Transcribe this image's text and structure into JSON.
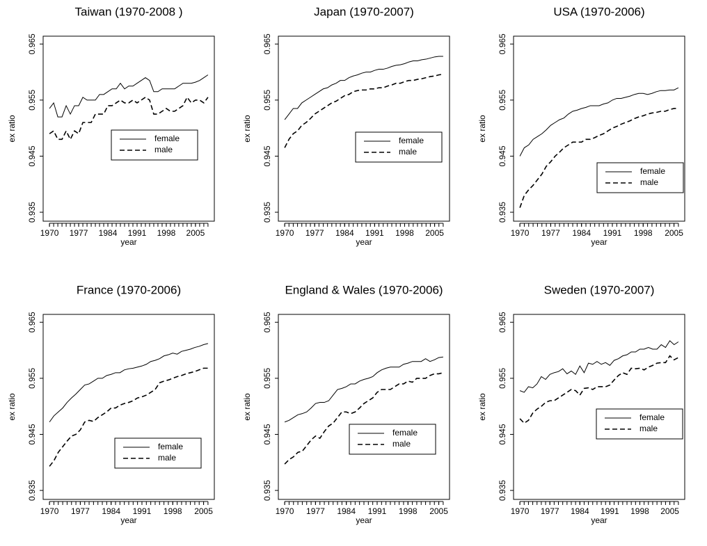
{
  "chart_data": [
    {
      "type": "line",
      "title": "Taiwan (1970-2008 )",
      "x_label": "year",
      "y_label": "ex ratio",
      "x": [
        1970,
        1971,
        1972,
        1973,
        1974,
        1975,
        1976,
        1977,
        1978,
        1979,
        1980,
        1981,
        1982,
        1983,
        1984,
        1985,
        1986,
        1987,
        1988,
        1989,
        1990,
        1991,
        1992,
        1993,
        1994,
        1995,
        1996,
        1997,
        1998,
        1999,
        2000,
        2001,
        2002,
        2003,
        2004,
        2005,
        2006,
        2007,
        2008
      ],
      "series": [
        {
          "name": "female",
          "color": "#000000",
          "linestyle": "solid",
          "values": [
            0.9535,
            0.9545,
            0.952,
            0.952,
            0.954,
            0.9525,
            0.954,
            0.954,
            0.9555,
            0.955,
            0.955,
            0.955,
            0.956,
            0.956,
            0.9565,
            0.957,
            0.957,
            0.958,
            0.957,
            0.9575,
            0.9575,
            0.958,
            0.9585,
            0.959,
            0.9585,
            0.9565,
            0.9565,
            0.957,
            0.957,
            0.957,
            0.957,
            0.9575,
            0.958,
            0.958,
            0.958,
            0.9582,
            0.9585,
            0.959,
            0.9595
          ]
        },
        {
          "name": "male",
          "color": "#000000",
          "linestyle": "dashed",
          "values": [
            0.949,
            0.9495,
            0.948,
            0.948,
            0.9495,
            0.948,
            0.9495,
            0.949,
            0.951,
            0.951,
            0.951,
            0.9525,
            0.9525,
            0.9525,
            0.954,
            0.954,
            0.9545,
            0.955,
            0.9545,
            0.9545,
            0.955,
            0.9545,
            0.955,
            0.9555,
            0.955,
            0.9525,
            0.9525,
            0.953,
            0.9535,
            0.953,
            0.953,
            0.9535,
            0.954,
            0.9555,
            0.9545,
            0.955,
            0.955,
            0.9545,
            0.9555
          ]
        }
      ],
      "xlim": [
        1968.48,
        2009.52
      ],
      "ylim": [
        0.9334,
        0.9664
      ],
      "xticks": [
        1970,
        1977,
        1984,
        1991,
        1998,
        2005
      ],
      "yticks": [
        0.935,
        0.945,
        0.955,
        0.965
      ]
    },
    {
      "type": "line",
      "title": "Japan (1970-2007)",
      "x_label": "year",
      "y_label": "ex ratio",
      "x": [
        1970,
        1971,
        1972,
        1973,
        1974,
        1975,
        1976,
        1977,
        1978,
        1979,
        1980,
        1981,
        1982,
        1983,
        1984,
        1985,
        1986,
        1987,
        1988,
        1989,
        1990,
        1991,
        1992,
        1993,
        1994,
        1995,
        1996,
        1997,
        1998,
        1999,
        2000,
        2001,
        2002,
        2003,
        2004,
        2005,
        2006,
        2007
      ],
      "series": [
        {
          "name": "female",
          "color": "#000000",
          "linestyle": "solid",
          "values": [
            0.9515,
            0.9525,
            0.9535,
            0.9535,
            0.9545,
            0.955,
            0.9555,
            0.956,
            0.9565,
            0.957,
            0.9572,
            0.9577,
            0.958,
            0.9585,
            0.9585,
            0.959,
            0.9593,
            0.9595,
            0.9598,
            0.96,
            0.96,
            0.9603,
            0.9605,
            0.9605,
            0.9607,
            0.961,
            0.9612,
            0.9613,
            0.9615,
            0.9618,
            0.962,
            0.962,
            0.9622,
            0.9623,
            0.9625,
            0.9627,
            0.9628,
            0.9628
          ]
        },
        {
          "name": "male",
          "color": "#000000",
          "linestyle": "dashed",
          "values": [
            0.9465,
            0.948,
            0.949,
            0.9495,
            0.9505,
            0.951,
            0.9517,
            0.9525,
            0.953,
            0.9535,
            0.954,
            0.9545,
            0.9548,
            0.9553,
            0.9558,
            0.956,
            0.9565,
            0.9567,
            0.9568,
            0.9568,
            0.957,
            0.957,
            0.9572,
            0.9572,
            0.9575,
            0.9577,
            0.958,
            0.958,
            0.9583,
            0.9585,
            0.9585,
            0.9587,
            0.9588,
            0.959,
            0.9592,
            0.9593,
            0.9595,
            0.9596
          ]
        }
      ],
      "xlim": [
        1968.52,
        2008.48
      ],
      "ylim": [
        0.9334,
        0.9664
      ],
      "xticks": [
        1970,
        1977,
        1984,
        1991,
        1998,
        2005
      ],
      "yticks": [
        0.935,
        0.945,
        0.955,
        0.965
      ]
    },
    {
      "type": "line",
      "title": "USA (1970-2006)",
      "x_label": "year",
      "y_label": "ex ratio",
      "x": [
        1970,
        1971,
        1972,
        1973,
        1974,
        1975,
        1976,
        1977,
        1978,
        1979,
        1980,
        1981,
        1982,
        1983,
        1984,
        1985,
        1986,
        1987,
        1988,
        1989,
        1990,
        1991,
        1992,
        1993,
        1994,
        1995,
        1996,
        1997,
        1998,
        1999,
        2000,
        2001,
        2002,
        2003,
        2004,
        2005,
        2006
      ],
      "series": [
        {
          "name": "female",
          "color": "#000000",
          "linestyle": "solid",
          "values": [
            0.945,
            0.9465,
            0.947,
            0.948,
            0.9485,
            0.949,
            0.9497,
            0.9505,
            0.951,
            0.9515,
            0.9518,
            0.9525,
            0.953,
            0.9532,
            0.9535,
            0.9537,
            0.954,
            0.954,
            0.954,
            0.9543,
            0.9545,
            0.955,
            0.9553,
            0.9553,
            0.9555,
            0.9557,
            0.956,
            0.9562,
            0.9562,
            0.956,
            0.9562,
            0.9565,
            0.9567,
            0.9567,
            0.9568,
            0.9568,
            0.9572
          ]
        },
        {
          "name": "male",
          "color": "#000000",
          "linestyle": "dashed",
          "values": [
            0.9358,
            0.938,
            0.939,
            0.9398,
            0.9408,
            0.9418,
            0.9432,
            0.944,
            0.945,
            0.9457,
            0.9465,
            0.947,
            0.9475,
            0.9475,
            0.9475,
            0.948,
            0.948,
            0.9483,
            0.9487,
            0.949,
            0.9495,
            0.95,
            0.9503,
            0.9507,
            0.951,
            0.9513,
            0.9517,
            0.952,
            0.9522,
            0.9525,
            0.9527,
            0.9528,
            0.953,
            0.953,
            0.9533,
            0.9535,
            0.9535
          ]
        }
      ],
      "xlim": [
        1968.56,
        2007.44
      ],
      "ylim": [
        0.9334,
        0.9664
      ],
      "xticks": [
        1970,
        1977,
        1984,
        1991,
        1998,
        2005
      ],
      "yticks": [
        0.935,
        0.945,
        0.955,
        0.965
      ]
    },
    {
      "type": "line",
      "title": "France (1970-2006)",
      "x_label": "year",
      "y_label": "ex ratio",
      "x": [
        1970,
        1971,
        1972,
        1973,
        1974,
        1975,
        1976,
        1977,
        1978,
        1979,
        1980,
        1981,
        1982,
        1983,
        1984,
        1985,
        1986,
        1987,
        1988,
        1989,
        1990,
        1991,
        1992,
        1993,
        1994,
        1995,
        1996,
        1997,
        1998,
        1999,
        2000,
        2001,
        2002,
        2003,
        2004,
        2005,
        2006
      ],
      "series": [
        {
          "name": "female",
          "color": "#000000",
          "linestyle": "solid",
          "values": [
            0.9472,
            0.9483,
            0.949,
            0.9497,
            0.9507,
            0.9515,
            0.9522,
            0.953,
            0.9538,
            0.954,
            0.9545,
            0.955,
            0.955,
            0.9555,
            0.9557,
            0.956,
            0.956,
            0.9565,
            0.9567,
            0.9568,
            0.957,
            0.9572,
            0.9575,
            0.958,
            0.9582,
            0.9585,
            0.959,
            0.9592,
            0.9595,
            0.9593,
            0.9598,
            0.96,
            0.9602,
            0.9605,
            0.9607,
            0.961,
            0.9612
          ]
        },
        {
          "name": "male",
          "color": "#000000",
          "linestyle": "dashed",
          "values": [
            0.9393,
            0.9403,
            0.9418,
            0.9428,
            0.9438,
            0.9447,
            0.945,
            0.9458,
            0.9472,
            0.9475,
            0.9473,
            0.948,
            0.9485,
            0.949,
            0.9497,
            0.9497,
            0.9502,
            0.9505,
            0.9507,
            0.951,
            0.9515,
            0.9517,
            0.952,
            0.9525,
            0.953,
            0.9542,
            0.9545,
            0.9547,
            0.955,
            0.9553,
            0.9555,
            0.9558,
            0.956,
            0.9562,
            0.9565,
            0.9568,
            0.9568
          ]
        }
      ],
      "xlim": [
        1968.56,
        2007.44
      ],
      "ylim": [
        0.9334,
        0.9664
      ],
      "xticks": [
        1970,
        1977,
        1984,
        1991,
        1998,
        2005
      ],
      "yticks": [
        0.935,
        0.945,
        0.955,
        0.965
      ]
    },
    {
      "type": "line",
      "title": "England & Wales (1970-2006)",
      "x_label": "year",
      "y_label": "ex ratio",
      "x": [
        1970,
        1971,
        1972,
        1973,
        1974,
        1975,
        1976,
        1977,
        1978,
        1979,
        1980,
        1981,
        1982,
        1983,
        1984,
        1985,
        1986,
        1987,
        1988,
        1989,
        1990,
        1991,
        1992,
        1993,
        1994,
        1995,
        1996,
        1997,
        1998,
        1999,
        2000,
        2001,
        2002,
        2003,
        2004,
        2005,
        2006
      ],
      "series": [
        {
          "name": "female",
          "color": "#000000",
          "linestyle": "solid",
          "values": [
            0.9472,
            0.9475,
            0.948,
            0.9485,
            0.9487,
            0.949,
            0.9497,
            0.9505,
            0.9507,
            0.9507,
            0.951,
            0.952,
            0.953,
            0.9532,
            0.9535,
            0.954,
            0.954,
            0.9545,
            0.9548,
            0.955,
            0.9553,
            0.956,
            0.9565,
            0.9568,
            0.957,
            0.957,
            0.957,
            0.9575,
            0.9577,
            0.958,
            0.958,
            0.958,
            0.9585,
            0.958,
            0.9583,
            0.9587,
            0.9588
          ]
        },
        {
          "name": "male",
          "color": "#000000",
          "linestyle": "dashed",
          "values": [
            0.9397,
            0.9405,
            0.941,
            0.9418,
            0.942,
            0.943,
            0.944,
            0.9447,
            0.9443,
            0.9455,
            0.9465,
            0.947,
            0.948,
            0.949,
            0.949,
            0.9487,
            0.949,
            0.9497,
            0.9505,
            0.951,
            0.9515,
            0.9525,
            0.953,
            0.953,
            0.953,
            0.9535,
            0.954,
            0.954,
            0.9545,
            0.9543,
            0.955,
            0.955,
            0.955,
            0.9555,
            0.9558,
            0.9558,
            0.956
          ]
        }
      ],
      "xlim": [
        1968.56,
        2007.44
      ],
      "ylim": [
        0.9334,
        0.9664
      ],
      "xticks": [
        1970,
        1977,
        1984,
        1991,
        1998,
        2005
      ],
      "yticks": [
        0.935,
        0.945,
        0.955,
        0.965
      ]
    },
    {
      "type": "line",
      "title": "Sweden (1970-2007)",
      "x_label": "year",
      "y_label": "ex ratio",
      "x": [
        1970,
        1971,
        1972,
        1973,
        1974,
        1975,
        1976,
        1977,
        1978,
        1979,
        1980,
        1981,
        1982,
        1983,
        1984,
        1985,
        1986,
        1987,
        1988,
        1989,
        1990,
        1991,
        1992,
        1993,
        1994,
        1995,
        1996,
        1997,
        1998,
        1999,
        2000,
        2001,
        2002,
        2003,
        2004,
        2005,
        2006,
        2007
      ],
      "series": [
        {
          "name": "female",
          "color": "#000000",
          "linestyle": "solid",
          "values": [
            0.9528,
            0.9525,
            0.9535,
            0.9533,
            0.954,
            0.9553,
            0.9548,
            0.9557,
            0.956,
            0.9562,
            0.9567,
            0.9558,
            0.9563,
            0.9557,
            0.9572,
            0.956,
            0.9577,
            0.9575,
            0.958,
            0.9575,
            0.9578,
            0.9573,
            0.9582,
            0.9585,
            0.959,
            0.9592,
            0.9597,
            0.9597,
            0.9602,
            0.9602,
            0.9605,
            0.9602,
            0.9602,
            0.961,
            0.9605,
            0.9617,
            0.961,
            0.9615
          ]
        },
        {
          "name": "male",
          "color": "#000000",
          "linestyle": "dashed",
          "values": [
            0.9478,
            0.947,
            0.9475,
            0.9488,
            0.9495,
            0.95,
            0.9507,
            0.951,
            0.951,
            0.9515,
            0.952,
            0.9525,
            0.953,
            0.9528,
            0.952,
            0.9532,
            0.9533,
            0.953,
            0.9535,
            0.9535,
            0.9535,
            0.9538,
            0.9547,
            0.9555,
            0.956,
            0.9557,
            0.9568,
            0.9567,
            0.9568,
            0.9565,
            0.957,
            0.9573,
            0.9577,
            0.9578,
            0.9578,
            0.959,
            0.9583,
            0.9587
          ]
        }
      ],
      "xlim": [
        1968.52,
        2008.48
      ],
      "ylim": [
        0.9334,
        0.9664
      ],
      "xticks": [
        1970,
        1977,
        1984,
        1991,
        1998,
        2005
      ],
      "yticks": [
        0.935,
        0.945,
        0.955,
        0.965
      ]
    }
  ]
}
